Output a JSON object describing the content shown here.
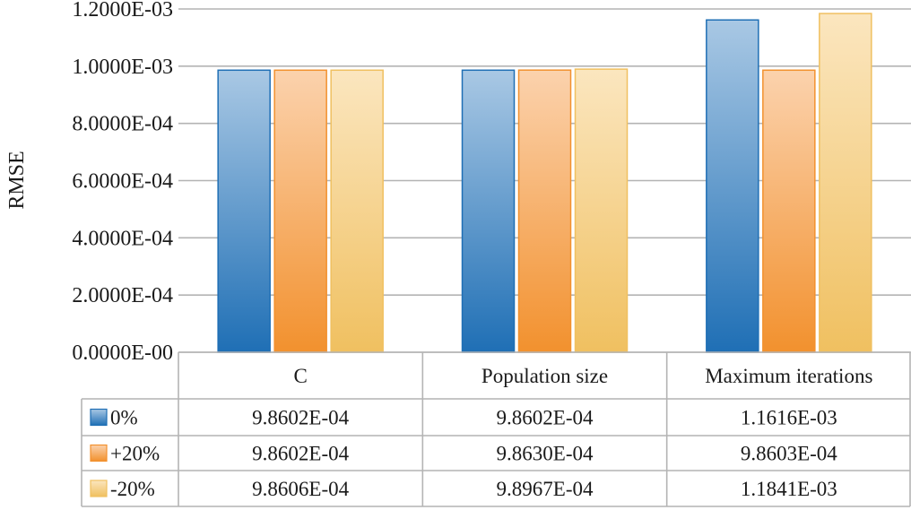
{
  "chart_data": {
    "type": "bar",
    "title": "",
    "xlabel": "",
    "ylabel": "RMSE",
    "ylim": [
      0,
      0.0012
    ],
    "y_ticks": [
      {
        "value": 0,
        "label": "0.0000E-00"
      },
      {
        "value": 0.0002,
        "label": "2.0000E-04"
      },
      {
        "value": 0.0004,
        "label": "4.0000E-04"
      },
      {
        "value": 0.0006,
        "label": "6.0000E-04"
      },
      {
        "value": 0.0008,
        "label": "8.0000E-04"
      },
      {
        "value": 0.001,
        "label": "1.0000E-03"
      },
      {
        "value": 0.0012,
        "label": "1.2000E-03"
      }
    ],
    "grid": true,
    "legend": "data-table-left",
    "categories": [
      "C",
      "Population size",
      "Maximum iterations"
    ],
    "series": [
      {
        "name": "0%",
        "color": "#1f6fb5",
        "color_light": "#a9c8e4",
        "values": [
          0.00098602,
          0.00098602,
          0.0011616
        ],
        "labels": [
          "9.8602E-04",
          "9.8602E-04",
          "1.1616E-03"
        ]
      },
      {
        "name": "+20%",
        "color": "#f2912e",
        "color_light": "#fbd2ad",
        "values": [
          0.00098602,
          0.0009863,
          0.00098603
        ],
        "labels": [
          "9.8602E-04",
          "9.8630E-04",
          "9.8603E-04"
        ]
      },
      {
        "name": "-20%",
        "color": "#f0c060",
        "color_light": "#fbe6bf",
        "values": [
          0.00098606,
          0.00098967,
          0.0011841
        ],
        "labels": [
          "9.8606E-04",
          "9.8967E-04",
          "1.1841E-03"
        ]
      }
    ]
  }
}
